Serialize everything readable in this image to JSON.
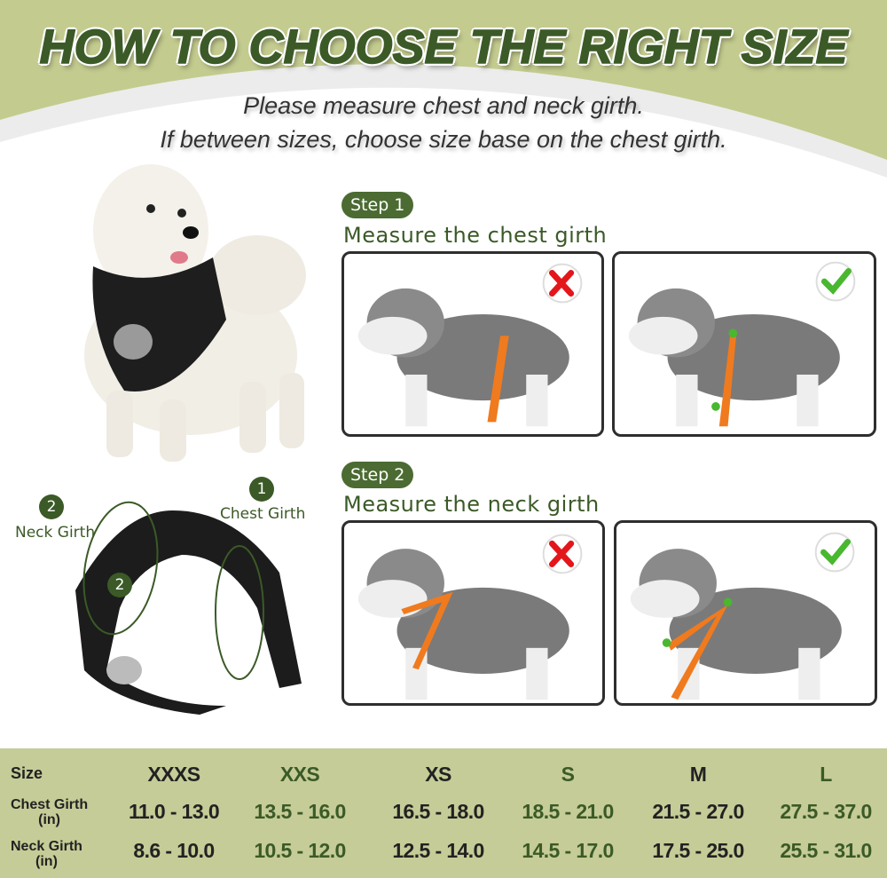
{
  "header": {
    "title": "HOW TO CHOOSE THE RIGHT SIZE",
    "subtitle_line1": "Please measure chest and neck girth.",
    "subtitle_line2": "If between sizes, choose size base on the chest girth."
  },
  "harness_diagram": {
    "badge1": "1",
    "label1": "Chest Girth",
    "badge2": "2",
    "label2": "Neck Girth",
    "inner_badge": "2"
  },
  "steps": [
    {
      "pill": "Step 1",
      "heading": "Measure the chest girth",
      "wrong_icon": "red-x-icon",
      "right_icon": "green-check-icon"
    },
    {
      "pill": "Step 2",
      "heading": "Measure the neck girth",
      "wrong_icon": "red-x-icon",
      "right_icon": "green-check-icon"
    }
  ],
  "size_table": {
    "row_labels": {
      "size": "Size",
      "chest": "Chest Girth",
      "chest_unit": "(in)",
      "neck": "Neck Girth",
      "neck_unit": "(in)"
    },
    "sizes": [
      "XXXS",
      "XXS",
      "XS",
      "S",
      "M",
      "L"
    ],
    "chest": [
      "11.0 - 13.0",
      "13.5 - 16.0",
      "16.5 - 18.0",
      "18.5 - 21.0",
      "21.5 - 27.0",
      "27.5 - 37.0"
    ],
    "neck": [
      "8.6 - 10.0",
      "10.5 - 12.0",
      "12.5 - 14.0",
      "14.5 - 17.0",
      "17.5 - 25.0",
      "25.5 - 31.0"
    ]
  },
  "colors": {
    "brand_green": "#3b5a27",
    "alt_green": "#4b6b32",
    "table_bg": "#c5cc97",
    "header_bg": "#c3cb8f",
    "tape_orange": "#f07a1e",
    "wrong_red": "#e3161b",
    "check_green": "#49b72f"
  }
}
